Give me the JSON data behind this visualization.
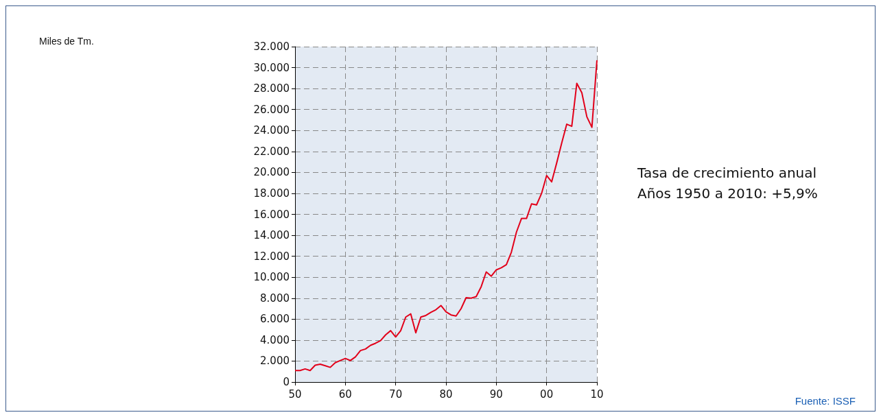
{
  "chart_data": {
    "type": "line",
    "x": [
      1950,
      1951,
      1952,
      1953,
      1954,
      1955,
      1956,
      1957,
      1958,
      1959,
      1960,
      1961,
      1962,
      1963,
      1964,
      1965,
      1966,
      1967,
      1968,
      1969,
      1970,
      1971,
      1972,
      1973,
      1974,
      1975,
      1976,
      1977,
      1978,
      1979,
      1980,
      1981,
      1982,
      1983,
      1984,
      1985,
      1986,
      1987,
      1988,
      1989,
      1990,
      1991,
      1992,
      1993,
      1994,
      1995,
      1996,
      1997,
      1998,
      1999,
      2000,
      2001,
      2002,
      2003,
      2004,
      2005,
      2006,
      2007,
      2008,
      2009,
      2010
    ],
    "series": [
      {
        "color": "#e2001a",
        "values": [
          1100,
          1100,
          1250,
          1100,
          1600,
          1700,
          1550,
          1400,
          1850,
          2050,
          2250,
          2050,
          2400,
          3000,
          3150,
          3500,
          3700,
          3950,
          4500,
          4900,
          4300,
          4900,
          6200,
          6500,
          4700,
          6200,
          6350,
          6650,
          6900,
          7300,
          6700,
          6400,
          6300,
          7000,
          8050,
          8000,
          8150,
          9100,
          10500,
          10100,
          10700,
          10900,
          11200,
          12400,
          14300,
          15600,
          15600,
          17000,
          16900,
          18000,
          19700,
          19100,
          20900,
          22800,
          24600,
          24400,
          28500,
          27600,
          25300,
          24300,
          30700
        ]
      }
    ],
    "xlim": [
      1950,
      2010
    ],
    "xticks": [
      {
        "value": 1950,
        "label": "50"
      },
      {
        "value": 1960,
        "label": "60"
      },
      {
        "value": 1970,
        "label": "70"
      },
      {
        "value": 1980,
        "label": "80"
      },
      {
        "value": 1990,
        "label": "90"
      },
      {
        "value": 2000,
        "label": "00"
      },
      {
        "value": 2010,
        "label": "10"
      }
    ],
    "ylim": [
      0,
      32000
    ],
    "yticks": [
      {
        "value": 0,
        "label": "0"
      },
      {
        "value": 2000,
        "label": "2.000"
      },
      {
        "value": 4000,
        "label": "4.000"
      },
      {
        "value": 6000,
        "label": "6.000"
      },
      {
        "value": 8000,
        "label": "8.000"
      },
      {
        "value": 10000,
        "label": "10.000"
      },
      {
        "value": 12000,
        "label": "12.000"
      },
      {
        "value": 14000,
        "label": "14.000"
      },
      {
        "value": 16000,
        "label": "16.000"
      },
      {
        "value": 18000,
        "label": "18.000"
      },
      {
        "value": 20000,
        "label": "20.000"
      },
      {
        "value": 22000,
        "label": "22.000"
      },
      {
        "value": 24000,
        "label": "24.000"
      },
      {
        "value": 26000,
        "label": "26.000"
      },
      {
        "value": 28000,
        "label": "28.000"
      },
      {
        "value": 30000,
        "label": "30.000"
      },
      {
        "value": 32000,
        "label": "32.000"
      }
    ],
    "grid": true,
    "marker": "none",
    "line_style": "solid",
    "annotations": [
      "Miles de Tm.",
      "Tasa de crecimiento anual\nAños 1950 a 2010: +5,9%",
      "Fuente: ISSF"
    ]
  }
}
